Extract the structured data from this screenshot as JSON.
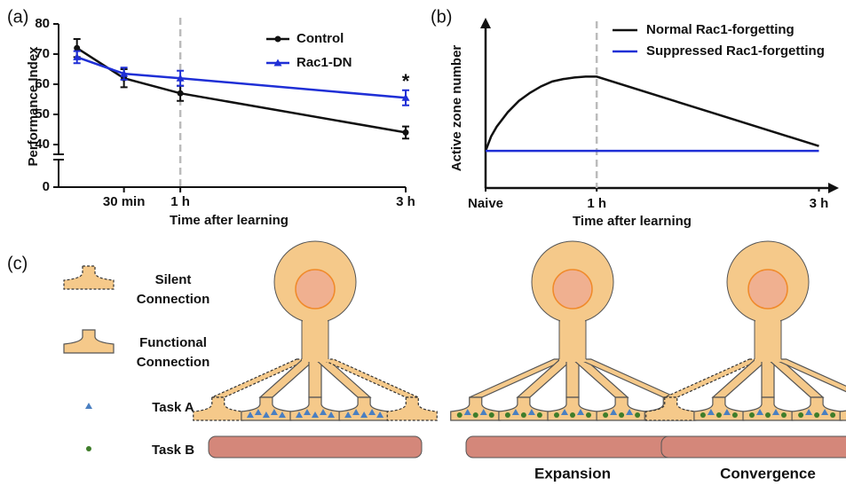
{
  "chart_data": [
    {
      "type": "line",
      "panel": "(a)",
      "x_label": "Time after learning",
      "y_label": "Performance Index",
      "x": [
        0.083,
        0.5,
        1,
        3
      ],
      "xticks": [
        {
          "value": 0.5,
          "label": "30 min"
        },
        {
          "value": 1,
          "label": "1 h"
        },
        {
          "value": 3,
          "label": "3 h"
        }
      ],
      "xlim": [
        -0.08,
        3
      ],
      "ylim": [
        0,
        80
      ],
      "yticks": [
        0,
        40,
        50,
        60,
        70,
        80
      ],
      "ybreak": [
        0,
        40
      ],
      "vline": 1,
      "legend": "upper right",
      "series": [
        {
          "name": "Control",
          "color": "#111111",
          "marker": "circle",
          "values": [
            72,
            62,
            57,
            44
          ],
          "errors": [
            3,
            3,
            2.5,
            2
          ]
        },
        {
          "name": "Rac1-DN",
          "color": "#1f2fd6",
          "marker": "triangle",
          "values": [
            69,
            63.5,
            62,
            55.5
          ],
          "errors": [
            2,
            2,
            2.5,
            2.5
          ]
        }
      ],
      "annotations": [
        {
          "text": "*",
          "x": 3,
          "y": 60
        }
      ]
    },
    {
      "type": "line",
      "panel": "(b)",
      "x_label": "Time after learning",
      "y_label": "Active zone number",
      "xticks": [
        {
          "value": 0,
          "label": "Naive"
        },
        {
          "value": 1,
          "label": "1 h"
        },
        {
          "value": 3,
          "label": "3 h"
        }
      ],
      "xlim": [
        0,
        3.1
      ],
      "ylim": [
        0,
        100
      ],
      "vline": 1,
      "legend": "upper right",
      "series": [
        {
          "name": "Normal Rac1-forgetting",
          "color": "#111111",
          "x": [
            0,
            0.05,
            0.1,
            0.2,
            0.3,
            0.4,
            0.5,
            0.6,
            0.7,
            0.8,
            0.9,
            1,
            3
          ],
          "values": [
            23,
            32,
            38,
            47,
            54,
            59,
            63,
            66,
            67.5,
            68.5,
            69,
            69,
            26
          ]
        },
        {
          "name": "Suppressed Rac1-forgetting",
          "color": "#1f2fd6",
          "x": [
            0,
            3
          ],
          "values": [
            23,
            23
          ]
        }
      ]
    }
  ],
  "diagram": {
    "panel": "(c)",
    "legend": [
      {
        "label_lines": [
          "Silent",
          "Connection"
        ]
      },
      {
        "label_lines": [
          "Functional",
          "Connection"
        ]
      },
      {
        "label": "Task A",
        "color": "#4a7fc1"
      },
      {
        "label": "Task B",
        "color": "#3f7d2a"
      }
    ],
    "captions": [
      "Expansion",
      "Convergence"
    ]
  }
}
